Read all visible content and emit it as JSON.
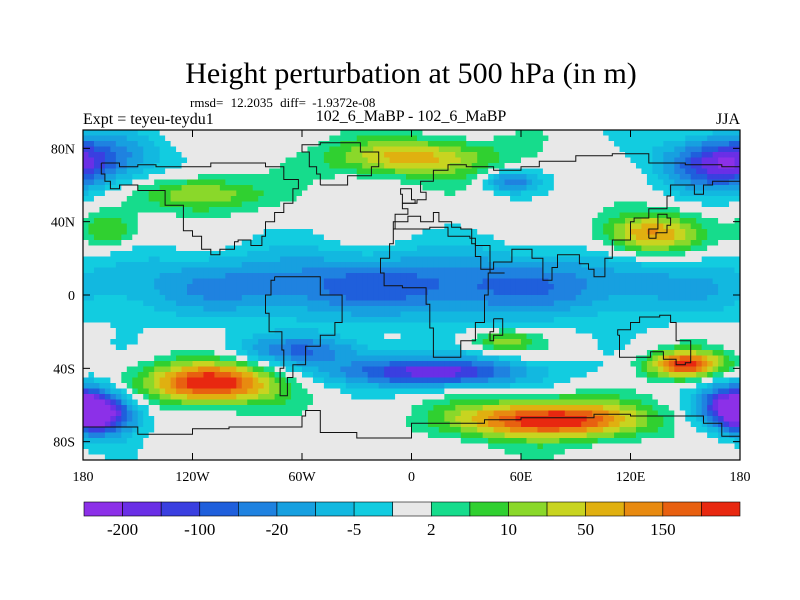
{
  "title": "Height perturbation at 500 hPa (in m)",
  "stats": {
    "rmsd_label": "rmsd=",
    "rmsd_value": "12.2035",
    "diff_label": "diff=",
    "diff_value": "-1.9372e-08"
  },
  "left_label": "Expt = teyeu-teydu1",
  "center_label": "102_6_MaBP - 102_6_MaBP",
  "right_label": "JJA",
  "chart_data": {
    "type": "heatmap",
    "projection": "cylindrical-equidistant",
    "x_range": [
      -180,
      180
    ],
    "y_range": [
      -90,
      90
    ],
    "x_ticks": [
      {
        "value": -180,
        "label": "180"
      },
      {
        "value": -120,
        "label": "120W"
      },
      {
        "value": -60,
        "label": "60W"
      },
      {
        "value": 0,
        "label": "0"
      },
      {
        "value": 60,
        "label": "60E"
      },
      {
        "value": 120,
        "label": "120E"
      },
      {
        "value": 180,
        "label": "180"
      }
    ],
    "y_ticks": [
      {
        "value": 80,
        "label": "80N"
      },
      {
        "value": 40,
        "label": "40N"
      },
      {
        "value": 0,
        "label": "0"
      },
      {
        "value": -40,
        "label": "40S"
      },
      {
        "value": -80,
        "label": "80S"
      }
    ],
    "levels": [
      -200,
      -150,
      -100,
      -50,
      -20,
      -10,
      -5,
      -2,
      2,
      5,
      10,
      20,
      50,
      100,
      150,
      200
    ],
    "colorbar_labels": [
      {
        "level": -200,
        "label": "-200"
      },
      {
        "level": -100,
        "label": "-100"
      },
      {
        "level": -20,
        "label": "-20"
      },
      {
        "level": -5,
        "label": "-5"
      },
      {
        "level": 2,
        "label": "2"
      },
      {
        "level": 10,
        "label": "10"
      },
      {
        "level": 50,
        "label": "50"
      },
      {
        "level": 150,
        "label": "150"
      }
    ],
    "colors": [
      "#8c30e8",
      "#6a2fe6",
      "#3a3fe0",
      "#1f5fdc",
      "#1f82e0",
      "#17a0e0",
      "#12b8e0",
      "#12cce0",
      "#e8e8e8",
      "#16dc8c",
      "#30d030",
      "#8ad82a",
      "#c8d420",
      "#e0b010",
      "#e88a10",
      "#e86010",
      "#e82810"
    ],
    "features": [
      {
        "name": "arctic-negative",
        "lon": -180,
        "lat": 75,
        "amp": -4,
        "slon": 40,
        "slat": 14
      },
      {
        "name": "arctic-negative-e",
        "lon": 170,
        "lat": 70,
        "amp": -4,
        "slon": 30,
        "slat": 14
      },
      {
        "name": "atlantic-north-positive",
        "lon": -115,
        "lat": 55,
        "amp": 4,
        "slon": 30,
        "slat": 9
      },
      {
        "name": "eurasia-north-positive",
        "lon": 0,
        "lat": 75,
        "amp": 5,
        "slon": 45,
        "slat": 10
      },
      {
        "name": "central-asia-negative",
        "lon": 55,
        "lat": 62,
        "amp": -4,
        "slon": 14,
        "slat": 6
      },
      {
        "name": "east-asia-positive",
        "lon": 130,
        "lat": 33,
        "amp": 6,
        "slon": 25,
        "slat": 11
      },
      {
        "name": "north-pacific-positive",
        "lon": -165,
        "lat": 35,
        "amp": 3,
        "slon": 15,
        "slat": 10
      },
      {
        "name": "tropical-negative",
        "lon": 0,
        "lat": 5,
        "amp": -5,
        "slon": 180,
        "slat": 18
      },
      {
        "name": "south-pacific-positive",
        "lon": -110,
        "lat": -48,
        "amp": 9,
        "slon": 34,
        "slat": 11
      },
      {
        "name": "indian-ocean-positive",
        "lon": 75,
        "lat": -68,
        "amp": 9,
        "slon": 48,
        "slat": 10
      },
      {
        "name": "south-australia-positive",
        "lon": 150,
        "lat": -38,
        "amp": 8,
        "slon": 20,
        "slat": 7
      },
      {
        "name": "south-america-negative",
        "lon": 10,
        "lat": -42,
        "amp": -7,
        "slon": 55,
        "slat": 8
      },
      {
        "name": "southern-ocean-negative-w",
        "lon": -170,
        "lat": -65,
        "amp": -8,
        "slon": 20,
        "slat": 12
      },
      {
        "name": "southern-ocean-negative-e",
        "lon": 175,
        "lat": -60,
        "amp": -6,
        "slon": 18,
        "slat": 12
      },
      {
        "name": "mid-pacific-south-negative",
        "lon": -60,
        "lat": -30,
        "amp": -4,
        "slon": 40,
        "slat": 8
      },
      {
        "name": "west-africa-positive",
        "lon": 50,
        "lat": -25,
        "amp": 3,
        "slon": 18,
        "slat": 6
      }
    ]
  }
}
